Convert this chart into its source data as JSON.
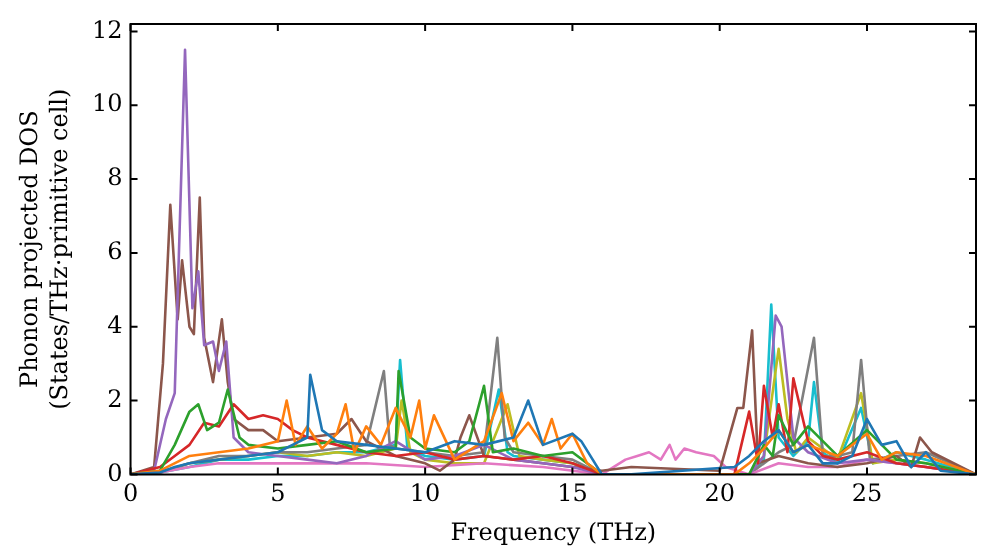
{
  "chart_data": {
    "type": "line",
    "xlabel": "Frequency (THz)",
    "ylabel": "Phonon projected DOS\n(States/THz·primitive cell)",
    "xlim": [
      0,
      28.7
    ],
    "xticks": [
      0,
      5,
      10,
      15,
      20,
      25
    ],
    "ylim": [
      0,
      12.2
    ],
    "yticks": [
      0,
      2,
      4,
      6,
      8,
      10,
      12
    ],
    "grid": false,
    "legend": false,
    "marker": "none",
    "line_style": "solid",
    "series": [
      {
        "color": "#1f77b4",
        "x": [
          0,
          1,
          1.5,
          2,
          3,
          4,
          5,
          5.5,
          6,
          6.1,
          6.5,
          7,
          8,
          9,
          10,
          11,
          12,
          13,
          13.5,
          14,
          15,
          15.3,
          16,
          17,
          20.5,
          21,
          21.5,
          22,
          22.5,
          23,
          23.5,
          24,
          24.5,
          25,
          25.5,
          26,
          26.5,
          27,
          27.5,
          28.7
        ],
        "values": [
          0,
          0.05,
          0.2,
          0.3,
          0.4,
          0.5,
          0.6,
          0.8,
          1.0,
          2.7,
          1.2,
          0.9,
          0.8,
          0.7,
          0.6,
          0.9,
          0.8,
          1.0,
          2.0,
          0.8,
          1.1,
          0.9,
          0,
          0,
          0.2,
          0.5,
          0.9,
          1.2,
          0.6,
          0.8,
          0.3,
          0.3,
          0.5,
          1.5,
          0.8,
          0.9,
          0.2,
          0.6,
          0.1,
          0
        ]
      },
      {
        "color": "#ff7f0e",
        "x": [
          0,
          1,
          2,
          3,
          4,
          5,
          5.3,
          5.6,
          6,
          6.5,
          7,
          7.3,
          7.6,
          8,
          8.5,
          9,
          9.5,
          9.8,
          10,
          10.3,
          11,
          12,
          12.6,
          13,
          13.5,
          14,
          14.3,
          14.6,
          15,
          15.5,
          16,
          20.5,
          21,
          21.5,
          22,
          22.5,
          23,
          24,
          25,
          25.5,
          26,
          27,
          28.7
        ],
        "values": [
          0,
          0.1,
          0.5,
          0.6,
          0.7,
          0.9,
          2.0,
          0.8,
          1.3,
          0.7,
          1.1,
          1.9,
          0.6,
          1.3,
          0.8,
          1.8,
          1.0,
          2.0,
          0.7,
          1.6,
          0.4,
          0.9,
          2.2,
          0.9,
          1.4,
          0.8,
          1.5,
          0.7,
          1.1,
          0.3,
          0,
          0,
          0.3,
          0.7,
          1.2,
          0.6,
          0.8,
          0.5,
          1.1,
          0.4,
          0.6,
          0.5,
          0
        ]
      },
      {
        "color": "#2ca02c",
        "x": [
          0,
          1,
          1.5,
          2,
          2.3,
          2.6,
          3,
          3.3,
          3.7,
          4,
          5,
          6,
          7,
          8,
          9,
          9.1,
          9.5,
          10,
          11,
          11.5,
          12,
          12.3,
          13,
          14,
          15,
          16,
          21,
          21.5,
          21.8,
          22,
          22.5,
          23,
          24,
          25,
          26,
          27,
          28.7
        ],
        "values": [
          0,
          0.1,
          0.8,
          1.7,
          1.9,
          1.2,
          1.4,
          2.3,
          1.0,
          0.8,
          0.7,
          0.8,
          0.9,
          0.6,
          0.7,
          2.8,
          1.0,
          0.7,
          0.6,
          0.9,
          2.4,
          0.6,
          0.7,
          0.5,
          0.6,
          0,
          0,
          0.8,
          0.5,
          1.6,
          0.8,
          1.3,
          0.5,
          1.2,
          0.4,
          0.3,
          0
        ]
      },
      {
        "color": "#d62728",
        "x": [
          0,
          1,
          1.5,
          2,
          2.5,
          3,
          3.5,
          4,
          4.5,
          5,
          5.5,
          6,
          7,
          8,
          9,
          10,
          11,
          12,
          13,
          14,
          15,
          16,
          20.5,
          21,
          21.3,
          21.5,
          21.8,
          22,
          22.3,
          22.5,
          23,
          23.5,
          24,
          25,
          26,
          27,
          28.7
        ],
        "values": [
          0,
          0.2,
          0.5,
          0.8,
          1.4,
          1.3,
          1.9,
          1.5,
          1.6,
          1.5,
          1.2,
          1.0,
          0.8,
          0.6,
          0.5,
          0.6,
          0.4,
          0.5,
          0.4,
          0.5,
          0.3,
          0,
          0,
          1.7,
          0.3,
          2.4,
          1.0,
          1.9,
          0.6,
          2.6,
          0.9,
          0.5,
          0.4,
          0.6,
          0.3,
          0.2,
          0
        ]
      },
      {
        "color": "#9467bd",
        "x": [
          0,
          0.8,
          1.2,
          1.5,
          1.85,
          2.1,
          2.3,
          2.5,
          2.8,
          3.0,
          3.25,
          3.5,
          4,
          5,
          6,
          7,
          8,
          9,
          10,
          11,
          12,
          13,
          14,
          15,
          16,
          21,
          21.5,
          21.9,
          22.1,
          22.5,
          23,
          24,
          25,
          26,
          27,
          28.7
        ],
        "values": [
          0,
          0.1,
          1.5,
          2.2,
          11.5,
          4.5,
          5.5,
          3.5,
          3.6,
          2.8,
          3.6,
          1.0,
          0.6,
          0.5,
          0.4,
          0.3,
          0.5,
          0.9,
          0.4,
          0.5,
          0.8,
          0.4,
          0.3,
          0.2,
          0,
          0,
          0.5,
          4.3,
          4.0,
          1.0,
          0.6,
          0.3,
          0.4,
          0.3,
          0.2,
          0
        ]
      },
      {
        "color": "#8c564b",
        "x": [
          0,
          0.8,
          1.1,
          1.35,
          1.6,
          1.75,
          2.0,
          2.15,
          2.35,
          2.5,
          2.8,
          3.1,
          3.3,
          3.5,
          4,
          4.5,
          5,
          6,
          7,
          7.5,
          8,
          9,
          10,
          10.5,
          11,
          11.2,
          11.5,
          12,
          13,
          14,
          15,
          16,
          17,
          20,
          20.6,
          20.8,
          21.1,
          21.3,
          22,
          23,
          24,
          25,
          26,
          26.5,
          26.8,
          27.2,
          28.7
        ],
        "values": [
          0,
          0.2,
          3.0,
          7.3,
          4.2,
          5.8,
          4.0,
          3.8,
          7.5,
          3.7,
          2.5,
          4.2,
          2.5,
          1.5,
          1.2,
          1.2,
          0.9,
          1.0,
          1.1,
          1.5,
          0.9,
          0.5,
          0.3,
          0.1,
          0.4,
          1.0,
          1.6,
          0.5,
          0.4,
          0.3,
          0.2,
          0.1,
          0.2,
          0.1,
          1.8,
          1.8,
          3.9,
          0.3,
          0.5,
          0.3,
          0.2,
          0.3,
          0.5,
          0.2,
          1.0,
          0.6,
          0
        ]
      },
      {
        "color": "#e377c2",
        "x": [
          0,
          1,
          2,
          3,
          4,
          5,
          6,
          8,
          10,
          12,
          14,
          16,
          16.8,
          17.2,
          17.6,
          18,
          18.3,
          18.5,
          18.8,
          19.2,
          19.8,
          20.2,
          21,
          22,
          23,
          24,
          25,
          26,
          27,
          28.7
        ],
        "values": [
          0,
          0.05,
          0.2,
          0.3,
          0.3,
          0.3,
          0.3,
          0.3,
          0.2,
          0.3,
          0.2,
          0,
          0.4,
          0.5,
          0.6,
          0.4,
          0.8,
          0.4,
          0.7,
          0.6,
          0.5,
          0.2,
          0,
          0.3,
          0.2,
          0.2,
          0.4,
          0.3,
          0.2,
          0
        ]
      },
      {
        "color": "#7f7f7f",
        "x": [
          0,
          1,
          2,
          3,
          4,
          5,
          6,
          7,
          8,
          8.6,
          8.8,
          9,
          10,
          11,
          12,
          12.45,
          12.7,
          13,
          14,
          15,
          16,
          21,
          22,
          22.5,
          23.2,
          23.5,
          24,
          24.5,
          24.8,
          25.1,
          26,
          27,
          28.7
        ],
        "values": [
          0,
          0.05,
          0.3,
          0.5,
          0.5,
          0.6,
          0.6,
          0.7,
          0.8,
          2.8,
          0.8,
          0.7,
          0.6,
          0.5,
          0.6,
          3.7,
          1.0,
          0.6,
          0.5,
          0.4,
          0,
          0,
          0.6,
          0.8,
          3.7,
          0.5,
          0.5,
          0.6,
          3.1,
          0.4,
          0.5,
          0.6,
          0
        ]
      },
      {
        "color": "#bcbd22",
        "x": [
          0,
          1,
          2,
          3,
          4,
          5,
          6,
          7,
          8,
          9,
          9.2,
          9.5,
          10,
          11,
          12,
          12.8,
          13.2,
          14,
          15,
          16,
          21,
          21.5,
          22,
          22.3,
          22.6,
          23,
          24,
          24.8,
          25.2,
          26,
          27,
          28.7
        ],
        "values": [
          0,
          0.05,
          0.3,
          0.4,
          0.5,
          0.6,
          0.5,
          0.6,
          0.5,
          0.7,
          2.0,
          0.6,
          0.4,
          0.3,
          0.3,
          1.9,
          0.5,
          0.4,
          0.3,
          0,
          0,
          0.5,
          3.4,
          1.5,
          0.6,
          1.0,
          0.4,
          2.2,
          0.3,
          0.4,
          0.3,
          0
        ]
      },
      {
        "color": "#17becf",
        "x": [
          0,
          1,
          2,
          3,
          4,
          5,
          6,
          7,
          8,
          9,
          9.15,
          9.4,
          10,
          11,
          12,
          12.5,
          12.8,
          13,
          14,
          15,
          16,
          21,
          21.5,
          21.75,
          22,
          22.5,
          23,
          23.2,
          23.5,
          24,
          24.8,
          25.2,
          26,
          27,
          28.7
        ],
        "values": [
          0,
          0.05,
          0.2,
          0.4,
          0.4,
          0.5,
          0.5,
          0.6,
          0.6,
          0.8,
          3.1,
          0.7,
          0.5,
          0.4,
          0.5,
          2.3,
          0.6,
          0.5,
          0.4,
          0.3,
          0,
          0,
          0.4,
          4.6,
          1.0,
          0.5,
          0.9,
          2.5,
          0.6,
          0.3,
          1.8,
          0.3,
          0.6,
          0.4,
          0
        ]
      }
    ]
  }
}
